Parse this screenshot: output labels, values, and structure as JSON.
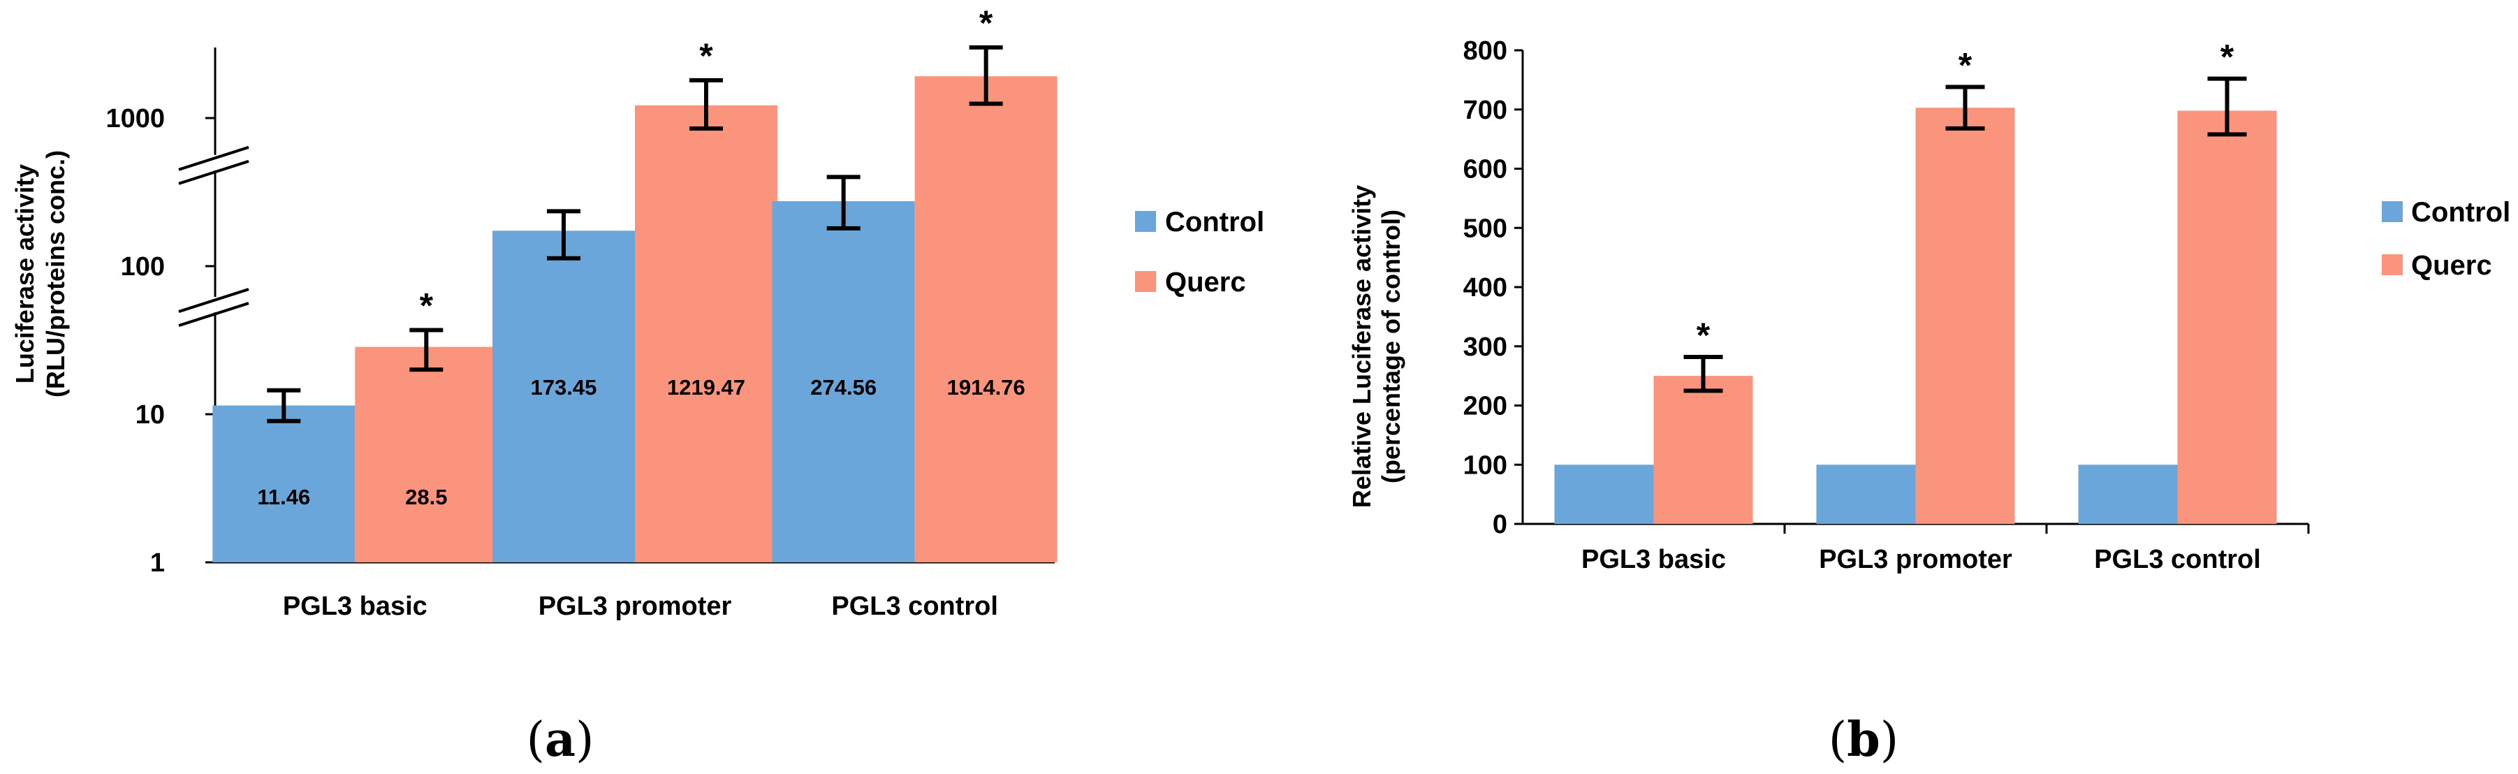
{
  "chart_data": [
    {
      "type": "bar",
      "panel_label": "a",
      "y_scale": "log",
      "categories": [
        "PGL3 basic",
        "PGL3 promoter",
        "PGL3 control"
      ],
      "series": [
        {
          "name": "Control",
          "color": "#6aa6da",
          "values": [
            11.46,
            173.45,
            274.56
          ],
          "err_low": [
            9,
            113,
            180
          ],
          "err_high": [
            14.5,
            235,
            400
          ],
          "labels": [
            "11.46",
            "173.45",
            "274.56"
          ]
        },
        {
          "name": "Querc",
          "color": "#fb947c",
          "values": [
            28.5,
            1219.47,
            1914.76
          ],
          "err_low": [
            20,
            850,
            1250
          ],
          "err_high": [
            37,
            1800,
            3000
          ],
          "labels": [
            "28.5",
            "1219.47",
            "1914.76"
          ],
          "significance": [
            "*",
            "*",
            "*"
          ]
        }
      ],
      "yticks": [
        "1",
        "10",
        "100",
        "1000"
      ],
      "ylim": [
        1,
        3000
      ],
      "ylabel_lines": [
        "Luciferase activity",
        "(RLU/proteins conc.)"
      ],
      "axis_breaks": [
        55,
        500
      ]
    },
    {
      "type": "bar",
      "panel_label": "b",
      "categories": [
        "PGL3 basic",
        "PGL3 promoter",
        "PGL3 control"
      ],
      "series": [
        {
          "name": "Control",
          "color": "#6aa6da",
          "values": [
            100,
            100,
            100
          ]
        },
        {
          "name": "Querc",
          "color": "#fb947c",
          "values": [
            250,
            703,
            698
          ],
          "err_low": [
            225,
            668,
            658
          ],
          "err_high": [
            282,
            738,
            752
          ],
          "significance": [
            "*",
            "*",
            "*"
          ]
        }
      ],
      "yticks": [
        "0",
        "100",
        "200",
        "300",
        "400",
        "500",
        "600",
        "700",
        "800"
      ],
      "ylim": [
        0,
        800
      ],
      "ylabel_lines": [
        "Relative Luciferase activity",
        "(percentage of control)"
      ]
    }
  ]
}
